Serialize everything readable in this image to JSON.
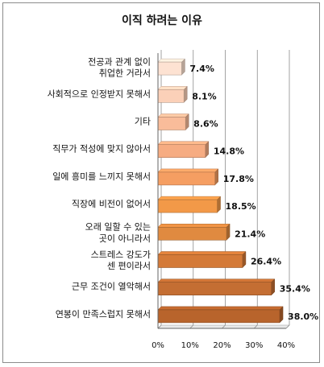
{
  "chart_data": {
    "type": "bar",
    "orientation": "horizontal",
    "title": "이직 하려는 이유",
    "categories": [
      "전공과 관계 없이 취업한 거라서",
      "사회적으로 인정받지 못해서",
      "기타",
      "직무가 적성에 맞지 않아서",
      "일에 흥미를 느끼지 못해서",
      "직장에 비전이 없어서",
      "오래 일할 수 있는 곳이 아니라서",
      "스트레스 강도가 센 편이라서",
      "근무 조건이 열악해서",
      "연봉이 만족스럽지 못해서"
    ],
    "values": [
      7.4,
      8.1,
      8.6,
      14.8,
      17.8,
      18.5,
      21.4,
      26.4,
      35.4,
      38.0
    ],
    "value_labels": [
      "7.4%",
      "8.1%",
      "8.6%",
      "14.8%",
      "17.8%",
      "18.5%",
      "21.4%",
      "26.4%",
      "35.4%",
      "38.0%"
    ],
    "bar_colors": [
      "#fde2d2",
      "#fbd0b8",
      "#f9bc9a",
      "#f6ac82",
      "#f59e62",
      "#f29948",
      "#e08a40",
      "#d47a38",
      "#c46e33",
      "#b8642c"
    ],
    "xlim": [
      0,
      40
    ],
    "xticks": [
      "0%",
      "10%",
      "20%",
      "30%",
      "40%"
    ],
    "grid": true,
    "xlabel": "",
    "ylabel": ""
  }
}
